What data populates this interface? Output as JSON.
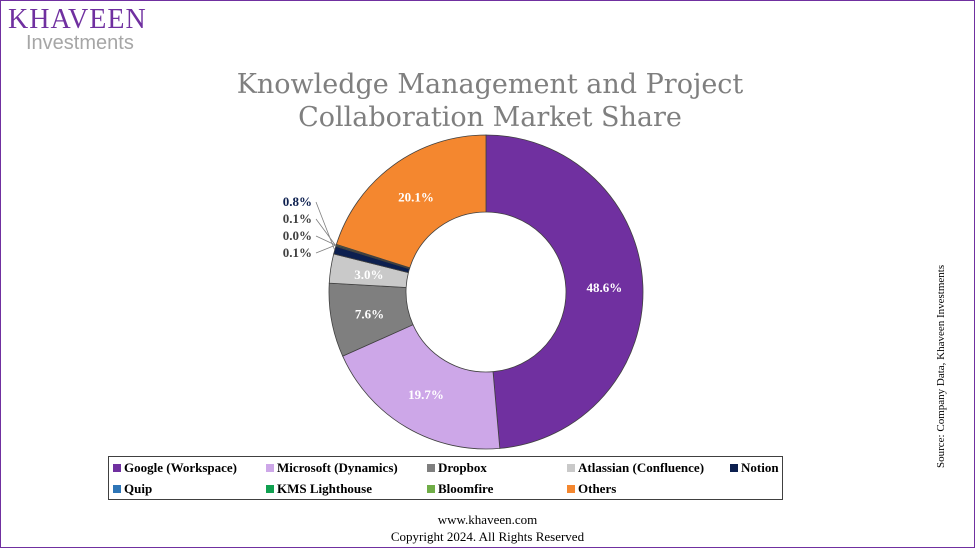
{
  "logo": {
    "line1": "KHAVEEN",
    "line2": "Investments"
  },
  "chart_data": {
    "type": "pie",
    "donut": true,
    "title": "Knowledge Management and Project Collaboration Market Share",
    "categories": [
      "Google (Workspace)",
      "Microsoft (Dynamics)",
      "Dropbox",
      "Atlassian (Confluence)",
      "Notion",
      "Quip",
      "KMS Lighthouse",
      "Bloomfire",
      "Others"
    ],
    "values": [
      48.6,
      19.7,
      7.6,
      3.0,
      0.8,
      0.1,
      0.0,
      0.1,
      20.1
    ],
    "labels": [
      "48.6%",
      "19.7%",
      "7.6%",
      "3.0%",
      "0.8%",
      "0.1%",
      "0.0%",
      "0.1%",
      "20.1%"
    ],
    "colors": [
      "#7030a0",
      "#cda7e8",
      "#7f7f7f",
      "#c9c9c9",
      "#0c1f4f",
      "#2e75b6",
      "#10a050",
      "#70ad47",
      "#f4872f"
    ],
    "legend": "bottom"
  },
  "source": "Source: Company Data, Khaveen Investments",
  "footer": {
    "url": "www.khaveen.com",
    "copyright": "Copyright 2024. All Rights Reserved"
  }
}
